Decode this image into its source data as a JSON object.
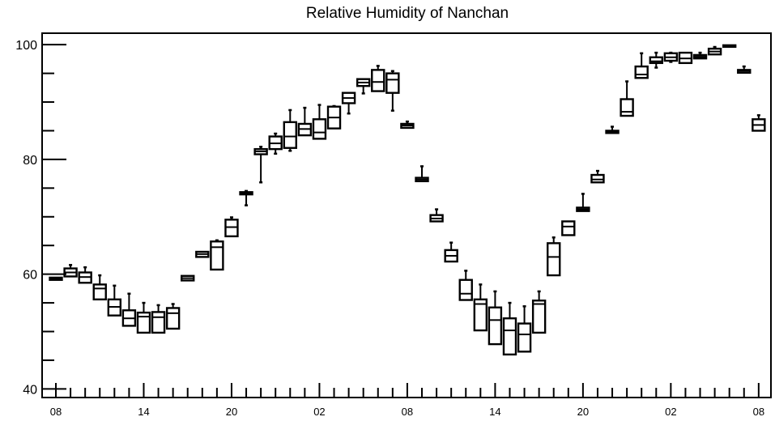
{
  "chart_data": {
    "type": "box",
    "title": "Relative Humidity of Nanchan",
    "xlabel": "",
    "ylabel": "",
    "ylim": [
      38.5,
      102
    ],
    "y_ticks": [
      40,
      60,
      80,
      100
    ],
    "x_tick_labels": [
      "08",
      "14",
      "20",
      "02",
      "08",
      "14",
      "20",
      "02",
      "08"
    ],
    "x_tick_positions": [
      0,
      6,
      12,
      18,
      24,
      30,
      36,
      42,
      48
    ],
    "grid": false,
    "legend": "none",
    "colors": {
      "box": "#000000",
      "background": "#ffffff"
    },
    "boxes": [
      {
        "x": 0,
        "q1": 59.0,
        "med": 59.2,
        "q3": 59.4,
        "lo": 59.0,
        "hi": 59.4
      },
      {
        "x": 1,
        "q1": 59.6,
        "med": 60.3,
        "q3": 61.0,
        "lo": 59.6,
        "hi": 61.6
      },
      {
        "x": 2,
        "q1": 58.5,
        "med": 59.5,
        "q3": 60.3,
        "lo": 58.5,
        "hi": 61.2
      },
      {
        "x": 3,
        "q1": 55.6,
        "med": 57.5,
        "q3": 58.2,
        "lo": 55.6,
        "hi": 59.8
      },
      {
        "x": 4,
        "q1": 52.8,
        "med": 54.3,
        "q3": 55.6,
        "lo": 52.8,
        "hi": 58.0
      },
      {
        "x": 5,
        "q1": 51.0,
        "med": 52.3,
        "q3": 53.7,
        "lo": 51.0,
        "hi": 56.6
      },
      {
        "x": 6,
        "q1": 49.8,
        "med": 52.6,
        "q3": 53.3,
        "lo": 49.8,
        "hi": 55.0
      },
      {
        "x": 7,
        "q1": 49.8,
        "med": 52.5,
        "q3": 53.4,
        "lo": 49.8,
        "hi": 54.6
      },
      {
        "x": 8,
        "q1": 50.5,
        "med": 53.2,
        "q3": 54.1,
        "lo": 50.5,
        "hi": 54.8
      },
      {
        "x": 9,
        "q1": 58.9,
        "med": 59.3,
        "q3": 59.7,
        "lo": 58.9,
        "hi": 59.7
      },
      {
        "x": 10,
        "q1": 63.0,
        "med": 63.5,
        "q3": 63.9,
        "lo": 63.0,
        "hi": 63.9
      },
      {
        "x": 11,
        "q1": 60.8,
        "med": 64.7,
        "q3": 65.7,
        "lo": 60.8,
        "hi": 65.9
      },
      {
        "x": 12,
        "q1": 66.6,
        "med": 68.2,
        "q3": 69.5,
        "lo": 66.6,
        "hi": 69.9
      },
      {
        "x": 13,
        "q1": 73.9,
        "med": 74.0,
        "q3": 74.3,
        "lo": 72.0,
        "hi": 74.5
      },
      {
        "x": 14,
        "q1": 80.9,
        "med": 81.4,
        "q3": 81.8,
        "lo": 76.0,
        "hi": 82.2
      },
      {
        "x": 15,
        "q1": 81.8,
        "med": 82.8,
        "q3": 84.0,
        "lo": 81.0,
        "hi": 84.5
      },
      {
        "x": 16,
        "q1": 82.0,
        "med": 84.0,
        "q3": 86.5,
        "lo": 81.5,
        "hi": 88.6
      },
      {
        "x": 17,
        "q1": 84.2,
        "med": 85.3,
        "q3": 86.2,
        "lo": 84.2,
        "hi": 89.0
      },
      {
        "x": 18,
        "q1": 83.6,
        "med": 84.7,
        "q3": 87.0,
        "lo": 83.6,
        "hi": 89.5
      },
      {
        "x": 19,
        "q1": 85.4,
        "med": 87.3,
        "q3": 89.2,
        "lo": 85.4,
        "hi": 89.3
      },
      {
        "x": 20,
        "q1": 89.8,
        "med": 90.7,
        "q3": 91.6,
        "lo": 88.0,
        "hi": 91.6
      },
      {
        "x": 21,
        "q1": 92.8,
        "med": 93.4,
        "q3": 94.0,
        "lo": 91.5,
        "hi": 94.0
      },
      {
        "x": 22,
        "q1": 91.9,
        "med": 93.5,
        "q3": 95.6,
        "lo": 91.9,
        "hi": 96.3
      },
      {
        "x": 23,
        "q1": 91.6,
        "med": 93.9,
        "q3": 95.0,
        "lo": 88.5,
        "hi": 95.4
      },
      {
        "x": 24,
        "q1": 85.5,
        "med": 85.9,
        "q3": 86.2,
        "lo": 85.5,
        "hi": 86.6
      },
      {
        "x": 25,
        "q1": 76.2,
        "med": 76.5,
        "q3": 76.8,
        "lo": 76.2,
        "hi": 78.8
      },
      {
        "x": 26,
        "q1": 69.2,
        "med": 69.7,
        "q3": 70.3,
        "lo": 69.2,
        "hi": 71.3
      },
      {
        "x": 27,
        "q1": 62.2,
        "med": 63.2,
        "q3": 64.2,
        "lo": 62.2,
        "hi": 65.5
      },
      {
        "x": 28,
        "q1": 55.5,
        "med": 56.6,
        "q3": 59.0,
        "lo": 55.5,
        "hi": 60.6
      },
      {
        "x": 29,
        "q1": 50.2,
        "med": 54.8,
        "q3": 55.6,
        "lo": 50.2,
        "hi": 58.2
      },
      {
        "x": 30,
        "q1": 47.8,
        "med": 52.0,
        "q3": 54.2,
        "lo": 47.8,
        "hi": 57.0
      },
      {
        "x": 31,
        "q1": 46.0,
        "med": 50.2,
        "q3": 52.3,
        "lo": 46.0,
        "hi": 55.0
      },
      {
        "x": 32,
        "q1": 46.5,
        "med": 49.5,
        "q3": 51.4,
        "lo": 46.5,
        "hi": 54.4
      },
      {
        "x": 33,
        "q1": 49.8,
        "med": 54.8,
        "q3": 55.4,
        "lo": 49.8,
        "hi": 57.0
      },
      {
        "x": 34,
        "q1": 59.8,
        "med": 63.0,
        "q3": 65.4,
        "lo": 59.8,
        "hi": 66.4
      },
      {
        "x": 35,
        "q1": 66.8,
        "med": 68.3,
        "q3": 69.2,
        "lo": 66.8,
        "hi": 69.2
      },
      {
        "x": 36,
        "q1": 71.0,
        "med": 71.3,
        "q3": 71.6,
        "lo": 71.0,
        "hi": 74.0
      },
      {
        "x": 37,
        "q1": 76.0,
        "med": 76.5,
        "q3": 77.3,
        "lo": 76.0,
        "hi": 78.0
      },
      {
        "x": 38,
        "q1": 84.6,
        "med": 84.8,
        "q3": 85.0,
        "lo": 84.6,
        "hi": 85.7
      },
      {
        "x": 39,
        "q1": 87.6,
        "med": 88.3,
        "q3": 90.5,
        "lo": 87.6,
        "hi": 93.6
      },
      {
        "x": 40,
        "q1": 94.2,
        "med": 94.8,
        "q3": 96.2,
        "lo": 94.2,
        "hi": 98.5
      },
      {
        "x": 41,
        "q1": 96.8,
        "med": 97.1,
        "q3": 97.8,
        "lo": 96.0,
        "hi": 98.6
      },
      {
        "x": 42,
        "q1": 97.2,
        "med": 97.8,
        "q3": 98.5,
        "lo": 97.0,
        "hi": 98.6
      },
      {
        "x": 43,
        "q1": 96.8,
        "med": 97.6,
        "q3": 98.6,
        "lo": 96.8,
        "hi": 98.6
      },
      {
        "x": 44,
        "q1": 97.6,
        "med": 97.9,
        "q3": 98.2,
        "lo": 97.6,
        "hi": 98.6
      },
      {
        "x": 45,
        "q1": 98.3,
        "med": 98.8,
        "q3": 99.3,
        "lo": 98.3,
        "hi": 99.6
      },
      {
        "x": 46,
        "q1": 99.7,
        "med": 99.8,
        "q3": 99.9,
        "lo": 99.7,
        "hi": 99.9
      },
      {
        "x": 47,
        "q1": 95.1,
        "med": 95.4,
        "q3": 95.6,
        "lo": 95.1,
        "hi": 96.2
      },
      {
        "x": 48,
        "q1": 85.0,
        "med": 86.0,
        "q3": 87.0,
        "lo": 85.0,
        "hi": 87.7
      }
    ]
  }
}
